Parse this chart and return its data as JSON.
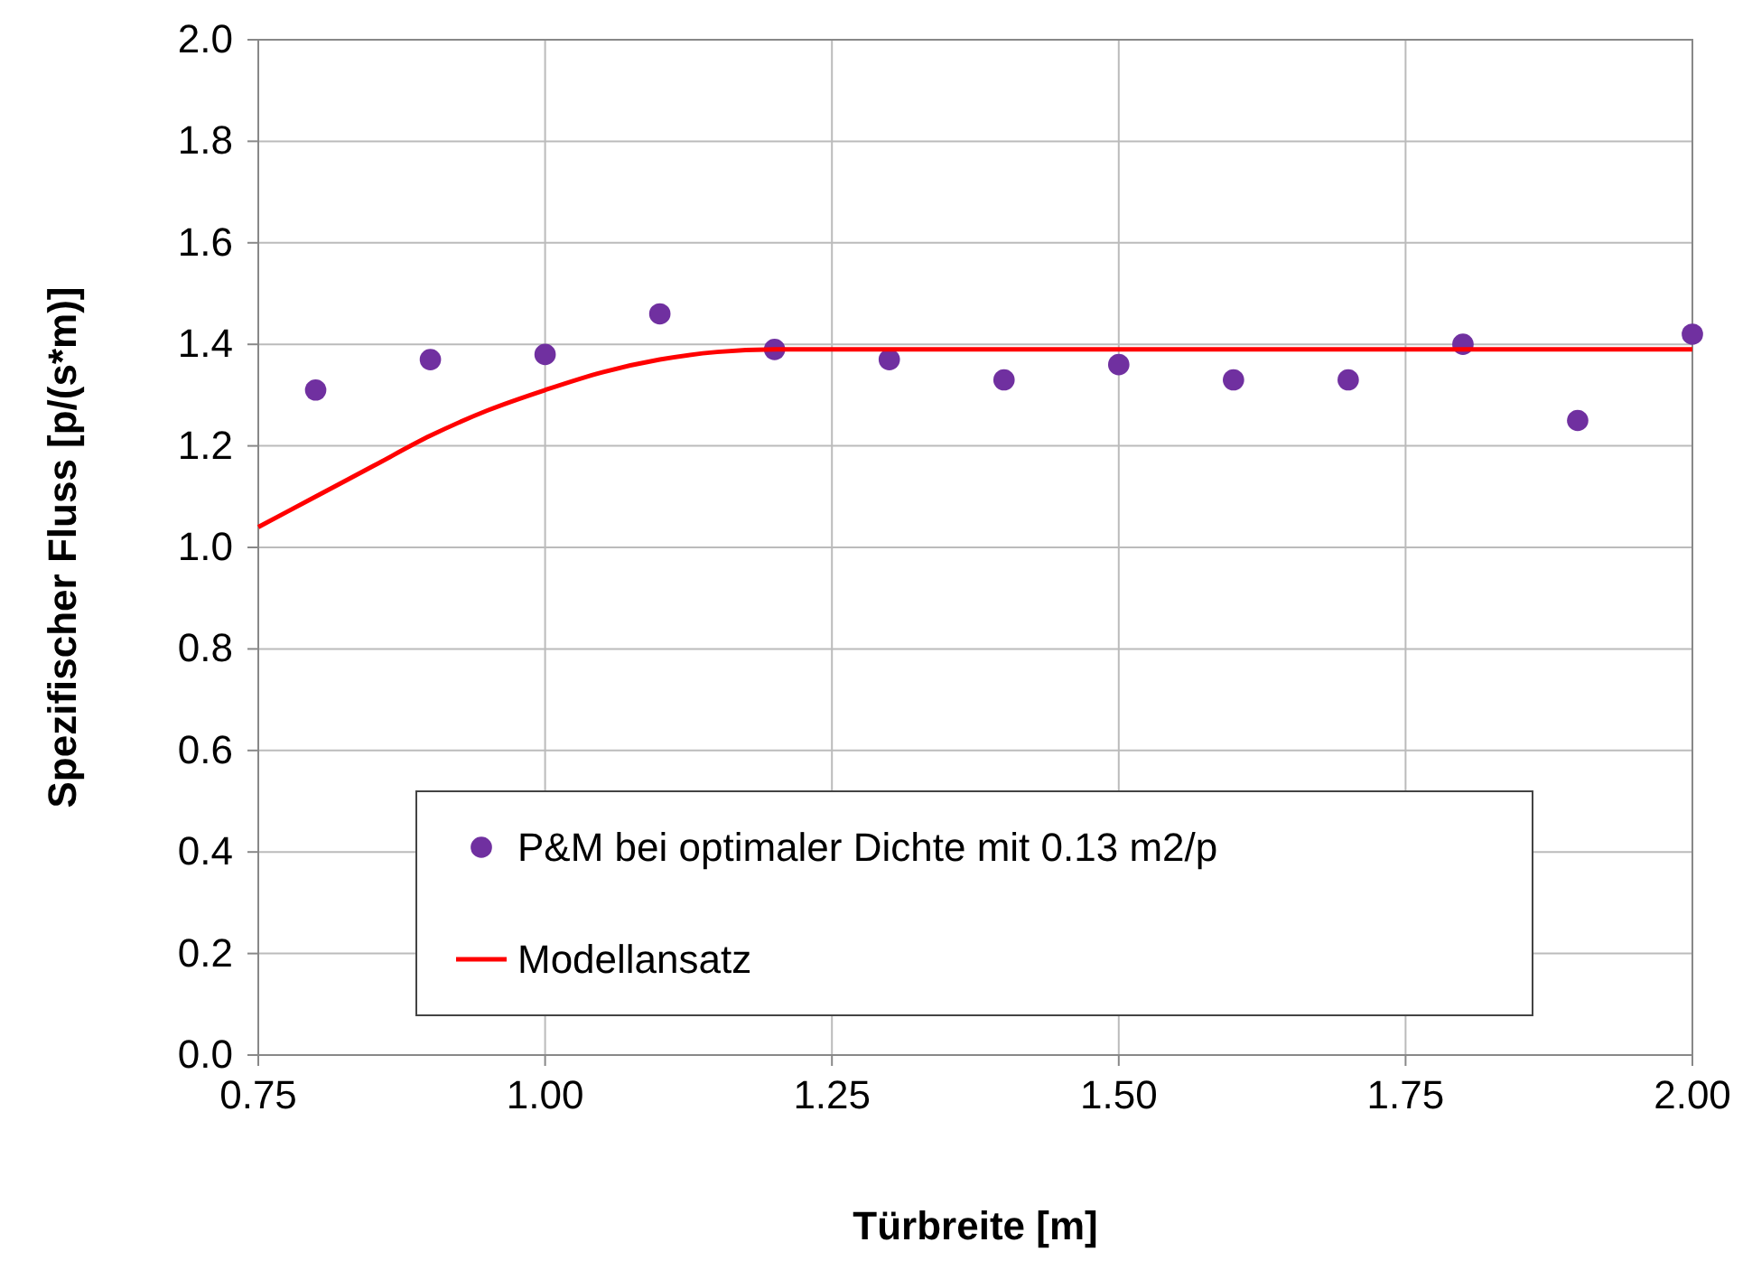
{
  "chart_data": {
    "type": "scatter",
    "xlabel": "Türbreite [m]",
    "ylabel": "Spezifischer Fluss [p/(s*m)]",
    "xlim": [
      0.75,
      2.0
    ],
    "xticks": [
      {
        "value": 0.75,
        "label": "0.75"
      },
      {
        "value": 1.0,
        "label": "1.00"
      },
      {
        "value": 1.25,
        "label": "1.25"
      },
      {
        "value": 1.5,
        "label": "1.50"
      },
      {
        "value": 1.75,
        "label": "1.75"
      },
      {
        "value": 2.0,
        "label": "2.00"
      }
    ],
    "ylim": [
      0,
      2
    ],
    "yticks": [
      {
        "value": 0,
        "label": "0.0"
      },
      {
        "value": 0.2,
        "label": "0.2"
      },
      {
        "value": 0.4,
        "label": "0.4"
      },
      {
        "value": 0.6,
        "label": "0.6"
      },
      {
        "value": 0.8,
        "label": "0.8"
      },
      {
        "value": 1.0,
        "label": "1.0"
      },
      {
        "value": 1.2,
        "label": "1.2"
      },
      {
        "value": 1.4,
        "label": "1.4"
      },
      {
        "value": 1.6,
        "label": "1.6"
      },
      {
        "value": 1.8,
        "label": "1.8"
      },
      {
        "value": 2.0,
        "label": "2.0"
      }
    ],
    "grid": true,
    "legend": "bottom",
    "series": [
      {
        "name": "P&M bei optimaler Dichte mit 0.13 m2/p",
        "marker": "circle",
        "color": "#7030a0",
        "x": [
          0.8,
          0.9,
          1.0,
          1.1,
          1.2,
          1.3,
          1.4,
          1.5,
          1.6,
          1.7,
          1.8,
          1.9,
          2.0
        ],
        "values": [
          1.31,
          1.37,
          1.38,
          1.46,
          1.39,
          1.37,
          1.33,
          1.36,
          1.33,
          1.33,
          1.4,
          1.25,
          1.42
        ]
      },
      {
        "name": "Modellansatz",
        "type": "line",
        "color": "#ff0000",
        "x": [
          0.75,
          0.8,
          0.85,
          0.9,
          0.95,
          1.0,
          1.05,
          1.1,
          1.15,
          1.2,
          2.0
        ],
        "values": [
          1.04,
          1.1,
          1.16,
          1.22,
          1.27,
          1.31,
          1.345,
          1.37,
          1.385,
          1.39,
          1.39
        ]
      }
    ]
  }
}
